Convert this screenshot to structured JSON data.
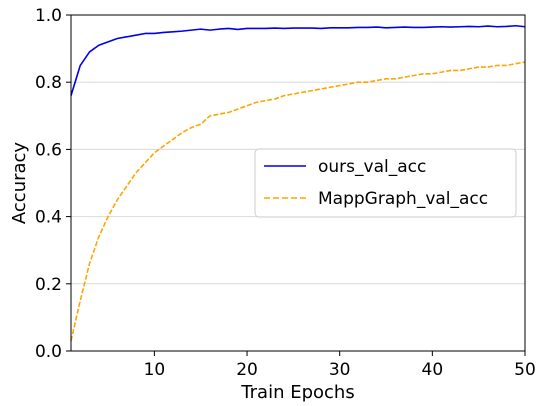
{
  "chart_data": {
    "type": "line",
    "xlabel": "Train Epochs",
    "ylabel": "Accuracy",
    "xlim": [
      1,
      50
    ],
    "ylim": [
      0.0,
      1.0
    ],
    "xticks": [
      "10",
      "20",
      "30",
      "40",
      "50"
    ],
    "yticks": [
      "0.0",
      "0.2",
      "0.4",
      "0.6",
      "0.8",
      "1.0"
    ],
    "grid": "horizontal",
    "legend_position": "center-right",
    "x": [
      1,
      2,
      3,
      4,
      5,
      6,
      7,
      8,
      9,
      10,
      11,
      12,
      13,
      14,
      15,
      16,
      17,
      18,
      19,
      20,
      21,
      22,
      23,
      24,
      25,
      26,
      27,
      28,
      29,
      30,
      31,
      32,
      33,
      34,
      35,
      36,
      37,
      38,
      39,
      40,
      41,
      42,
      43,
      44,
      45,
      46,
      47,
      48,
      49,
      50
    ],
    "series": [
      {
        "name": "ours_val_acc",
        "color": "#0000ee",
        "style": "solid",
        "values": [
          0.76,
          0.85,
          0.89,
          0.91,
          0.92,
          0.93,
          0.935,
          0.94,
          0.945,
          0.945,
          0.948,
          0.95,
          0.952,
          0.955,
          0.958,
          0.955,
          0.958,
          0.96,
          0.957,
          0.96,
          0.96,
          0.96,
          0.961,
          0.96,
          0.961,
          0.961,
          0.961,
          0.96,
          0.962,
          0.962,
          0.962,
          0.963,
          0.963,
          0.964,
          0.962,
          0.963,
          0.964,
          0.963,
          0.963,
          0.964,
          0.965,
          0.964,
          0.965,
          0.966,
          0.965,
          0.967,
          0.965,
          0.966,
          0.968,
          0.965
        ]
      },
      {
        "name": "MappGraph_val_acc",
        "color": "#ffa500",
        "style": "dashed",
        "values": [
          0.03,
          0.15,
          0.26,
          0.34,
          0.4,
          0.45,
          0.49,
          0.53,
          0.56,
          0.59,
          0.61,
          0.63,
          0.65,
          0.665,
          0.675,
          0.7,
          0.705,
          0.71,
          0.72,
          0.73,
          0.74,
          0.745,
          0.75,
          0.76,
          0.765,
          0.77,
          0.775,
          0.78,
          0.785,
          0.79,
          0.795,
          0.8,
          0.8,
          0.805,
          0.81,
          0.81,
          0.815,
          0.82,
          0.825,
          0.825,
          0.83,
          0.835,
          0.835,
          0.84,
          0.845,
          0.845,
          0.85,
          0.85,
          0.855,
          0.86
        ]
      }
    ]
  }
}
